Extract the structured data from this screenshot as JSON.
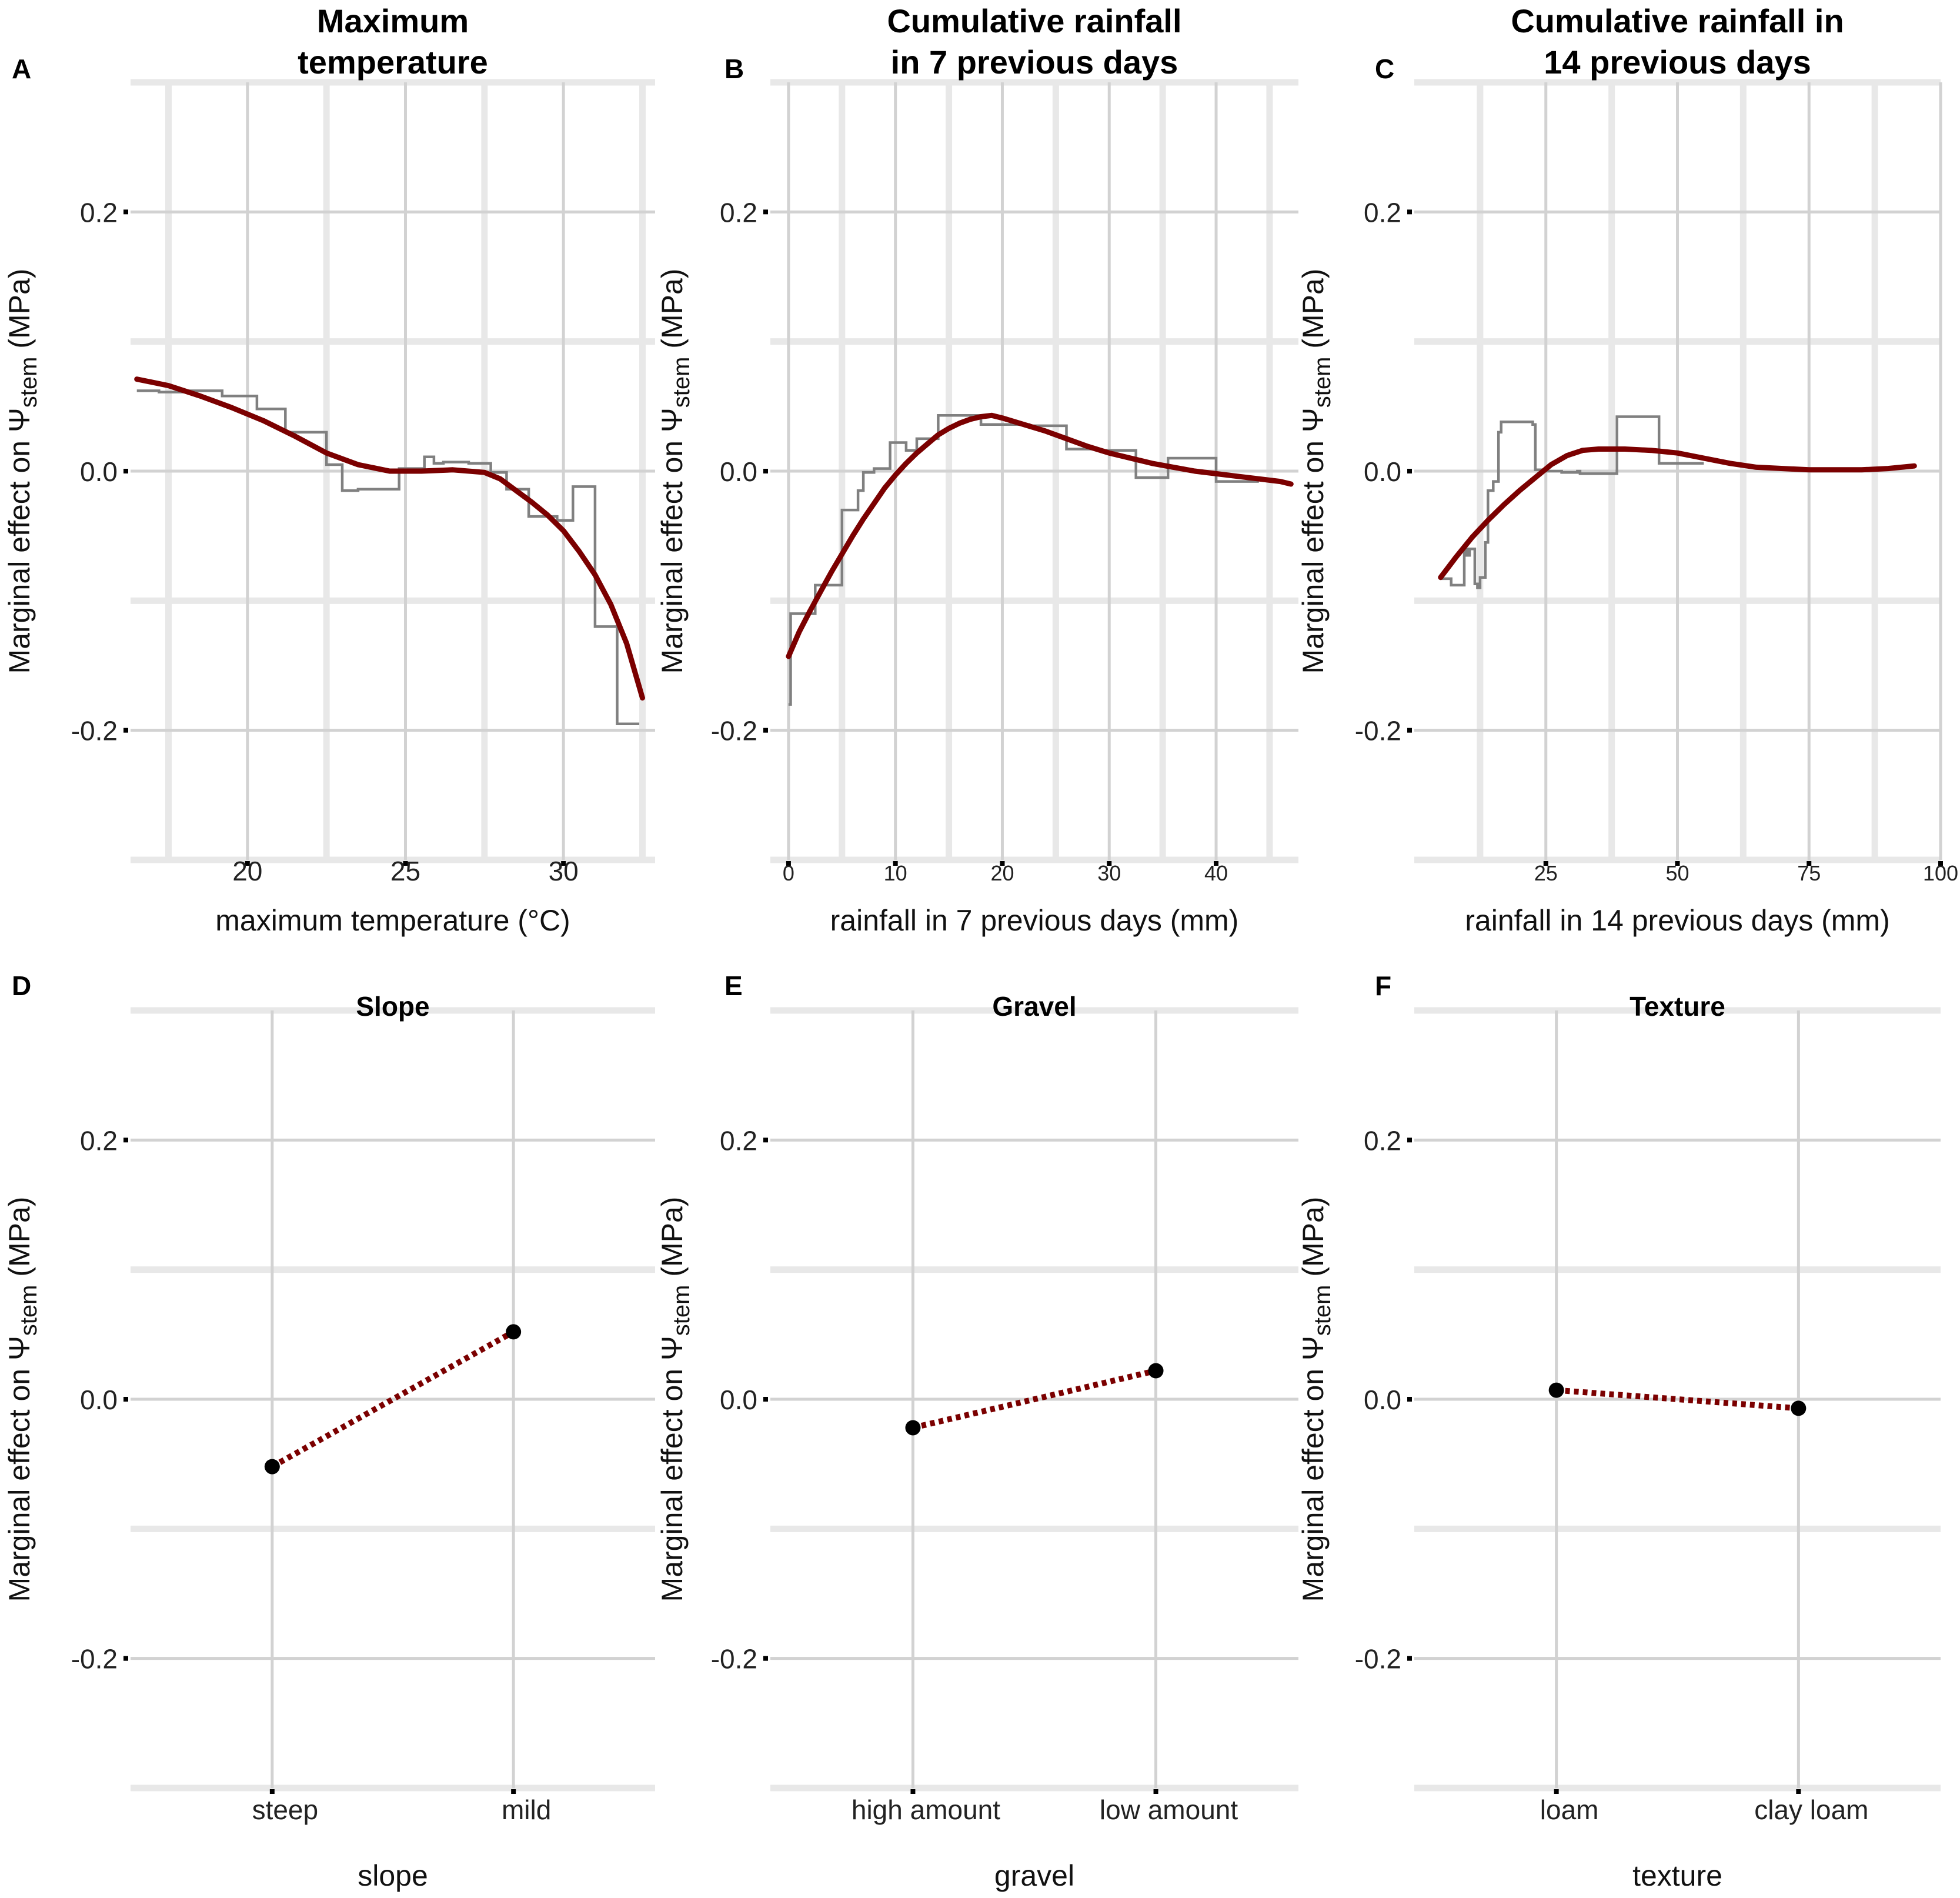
{
  "colors": {
    "smooth": "#7b0000",
    "raw": "#808080",
    "grid_major": "#d2d2d2",
    "grid_minor": "#e8e8e8",
    "point": "#000000"
  },
  "y_axis": {
    "label_prefix": "Marginal effect on Ψ",
    "label_sub": "stem",
    "label_suffix": " (MPa)",
    "ylim": [
      -0.3,
      0.3
    ],
    "ticks": [
      0.2,
      0.0,
      -0.2
    ],
    "tick_labels": [
      "0.2",
      "0.0",
      "-0.2"
    ]
  },
  "chart_data": [
    {
      "letter": "A",
      "type": "line",
      "title": [
        "Maximum",
        "temperature"
      ],
      "xlabel": "maximum temperature (°C)",
      "xlim": [
        16.3,
        32.9
      ],
      "xticks": [
        20,
        25,
        30
      ],
      "xtick_labels": [
        "20",
        "25",
        "30"
      ],
      "xminor": [
        17.5,
        22.5,
        27.5,
        32.5
      ],
      "series": [
        {
          "name": "raw",
          "x": [
            16.5,
            17.2,
            17.2,
            18.2,
            18.2,
            19.2,
            19.2,
            20.3,
            20.3,
            21.2,
            21.2,
            22.5,
            22.5,
            23.0,
            23.0,
            23.5,
            23.5,
            24.8,
            24.8,
            25.6,
            25.6,
            25.9,
            25.9,
            26.2,
            26.2,
            27.0,
            27.0,
            27.7,
            27.7,
            28.2,
            28.2,
            28.9,
            28.9,
            29.8,
            29.8,
            30.3,
            30.3,
            31.0,
            31.0,
            31.7,
            31.7,
            32.4
          ],
          "y": [
            0.062,
            0.062,
            0.061,
            0.061,
            0.062,
            0.062,
            0.058,
            0.058,
            0.048,
            0.048,
            0.03,
            0.03,
            0.005,
            0.005,
            -0.015,
            -0.015,
            -0.014,
            -0.014,
            0.002,
            0.002,
            0.011,
            0.011,
            0.006,
            0.006,
            0.007,
            0.007,
            0.006,
            0.006,
            -0.001,
            -0.001,
            -0.014,
            -0.014,
            -0.035,
            -0.035,
            -0.038,
            -0.038,
            -0.012,
            -0.012,
            -0.12,
            -0.12,
            -0.195,
            -0.195
          ]
        },
        {
          "name": "smooth",
          "x": [
            16.5,
            17.5,
            18.5,
            19.5,
            20.5,
            21.5,
            22.5,
            23.5,
            24.5,
            25.5,
            26.5,
            27.5,
            28.0,
            28.5,
            29.0,
            29.5,
            30.0,
            30.5,
            31.0,
            31.5,
            32.0,
            32.5
          ],
          "y": [
            0.071,
            0.066,
            0.058,
            0.049,
            0.039,
            0.027,
            0.014,
            0.005,
            0.0,
            0.0,
            0.001,
            -0.001,
            -0.006,
            -0.015,
            -0.024,
            -0.034,
            -0.046,
            -0.062,
            -0.08,
            -0.103,
            -0.133,
            -0.175
          ]
        }
      ]
    },
    {
      "letter": "B",
      "type": "line",
      "title": [
        "Cumulative rainfall",
        "in 7 previous days"
      ],
      "xlabel": "rainfall in 7 previous days  (mm)",
      "xlim": [
        -1.7,
        47.7
      ],
      "xticks": [
        0,
        10,
        20,
        30,
        40
      ],
      "xtick_labels": [
        "0",
        "10",
        "20",
        "30",
        "40"
      ],
      "xminor": [
        5,
        15,
        25,
        35,
        45
      ],
      "series": [
        {
          "name": "raw",
          "x": [
            0.0,
            0.2,
            0.2,
            2.5,
            2.5,
            5.0,
            5.0,
            6.5,
            6.5,
            7.0,
            7.0,
            8.0,
            8.0,
            8.5,
            8.5,
            9.5,
            9.5,
            11.0,
            11.0,
            12.0,
            12.0,
            14.0,
            14.0,
            18.0,
            18.0,
            19.5,
            19.5,
            22.5,
            22.5,
            26.0,
            26.0,
            29.0,
            29.0,
            32.5,
            32.5,
            35.5,
            35.5,
            40.0,
            40.0,
            44.0
          ],
          "y": [
            -0.18,
            -0.18,
            -0.11,
            -0.11,
            -0.088,
            -0.088,
            -0.03,
            -0.03,
            -0.015,
            -0.015,
            -0.001,
            -0.001,
            0.002,
            0.002,
            0.002,
            0.002,
            0.022,
            0.022,
            0.016,
            0.016,
            0.025,
            0.025,
            0.043,
            0.043,
            0.036,
            0.036,
            0.036,
            0.036,
            0.035,
            0.035,
            0.017,
            0.017,
            0.016,
            0.016,
            -0.005,
            -0.005,
            0.01,
            0.01,
            -0.008,
            -0.008
          ]
        },
        {
          "name": "smooth",
          "x": [
            0,
            1,
            2,
            3,
            4,
            5,
            6,
            7,
            8,
            9,
            10,
            11,
            12,
            13,
            14,
            15,
            16,
            17,
            18,
            19,
            20,
            22,
            24,
            26,
            28,
            30,
            32,
            34,
            36,
            38,
            40,
            42,
            44,
            46,
            47
          ],
          "y": [
            -0.143,
            -0.124,
            -0.108,
            -0.093,
            -0.078,
            -0.064,
            -0.05,
            -0.037,
            -0.025,
            -0.013,
            -0.003,
            0.006,
            0.014,
            0.021,
            0.028,
            0.033,
            0.037,
            0.04,
            0.042,
            0.043,
            0.041,
            0.036,
            0.031,
            0.025,
            0.019,
            0.014,
            0.01,
            0.006,
            0.003,
            0.0,
            -0.002,
            -0.004,
            -0.006,
            -0.008,
            -0.01
          ]
        }
      ]
    },
    {
      "letter": "C",
      "type": "line",
      "title": [
        "Cumulative rainfall in",
        "14 previous days"
      ],
      "xlabel": "rainfall in 14 previous days (mm)",
      "xlim": [
        0,
        100
      ],
      "xticks": [
        25,
        50,
        75,
        100
      ],
      "xtick_labels": [
        "25",
        "50",
        "75",
        "100"
      ],
      "xminor": [
        12.5,
        37.5,
        62.5,
        87.5
      ],
      "series": [
        {
          "name": "raw",
          "x": [
            5.0,
            7.0,
            7.0,
            9.5,
            9.5,
            10.0,
            10.0,
            10.5,
            10.5,
            11.5,
            11.5,
            12.0,
            12.0,
            12.5,
            12.5,
            13.5,
            13.5,
            14.0,
            14.0,
            15.0,
            15.0,
            16.0,
            16.0,
            16.5,
            16.5,
            22.5,
            22.5,
            23.0,
            23.0,
            24.5,
            24.5,
            28.0,
            28.0,
            31.0,
            31.0,
            31.5,
            31.5,
            38.5,
            38.5,
            46.5,
            46.5,
            55.0
          ],
          "y": [
            -0.083,
            -0.083,
            -0.088,
            -0.088,
            -0.06,
            -0.06,
            -0.065,
            -0.065,
            -0.06,
            -0.06,
            -0.087,
            -0.087,
            -0.09,
            -0.09,
            -0.082,
            -0.082,
            -0.055,
            -0.055,
            -0.015,
            -0.015,
            -0.008,
            -0.008,
            0.03,
            0.03,
            0.038,
            0.038,
            0.036,
            0.036,
            0.001,
            0.001,
            0.0,
            0.0,
            -0.001,
            -0.001,
            0.0,
            0.0,
            -0.002,
            -0.002,
            0.042,
            0.042,
            0.006,
            0.006
          ]
        },
        {
          "name": "smooth",
          "x": [
            5,
            8,
            11,
            14,
            17,
            20,
            23,
            26,
            29,
            32,
            35,
            40,
            45,
            50,
            55,
            60,
            65,
            70,
            75,
            80,
            85,
            90,
            95
          ],
          "y": [
            -0.082,
            -0.066,
            -0.051,
            -0.038,
            -0.026,
            -0.015,
            -0.005,
            0.005,
            0.012,
            0.016,
            0.017,
            0.017,
            0.016,
            0.014,
            0.01,
            0.006,
            0.003,
            0.002,
            0.001,
            0.001,
            0.001,
            0.002,
            0.004
          ]
        }
      ]
    },
    {
      "letter": "D",
      "type": "scatter",
      "title": [
        "Slope"
      ],
      "xlabel": "slope",
      "categories": [
        "steep",
        "mild"
      ],
      "values": [
        -0.052,
        0.052
      ]
    },
    {
      "letter": "E",
      "type": "scatter",
      "title": [
        "Gravel"
      ],
      "xlabel": "gravel",
      "categories": [
        "high amount",
        "low amount"
      ],
      "values": [
        -0.022,
        0.022
      ]
    },
    {
      "letter": "F",
      "type": "scatter",
      "title": [
        "Texture"
      ],
      "xlabel": "texture",
      "categories": [
        "loam",
        "clay loam"
      ],
      "values": [
        0.007,
        -0.007
      ]
    }
  ]
}
